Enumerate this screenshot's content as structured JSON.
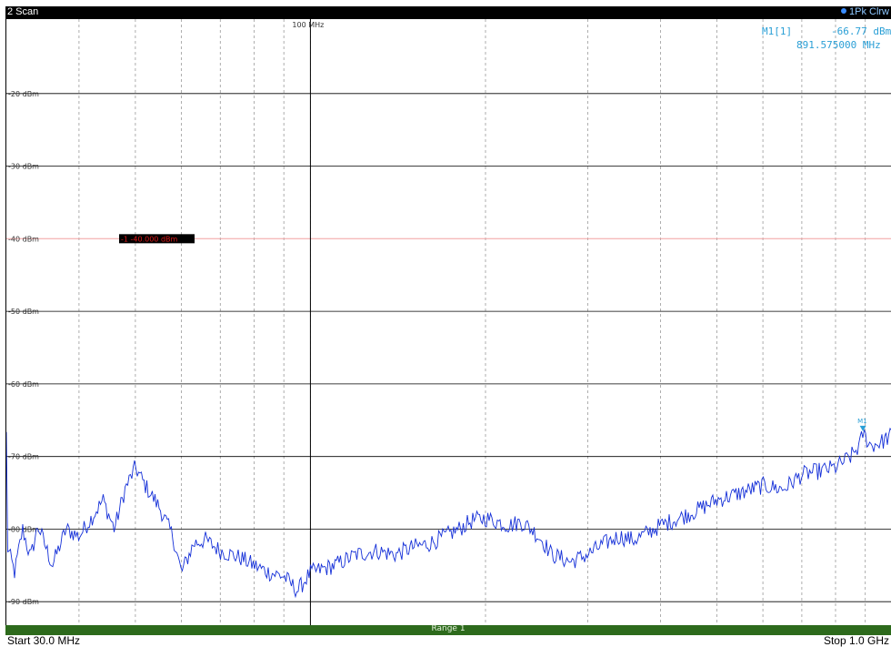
{
  "header": {
    "title": "2 Scan",
    "trace_label": "1Pk Clrw"
  },
  "marker_readout": {
    "name": "M1[1]",
    "level": "-66.77 dBm",
    "frequency": "891.575000 MHz"
  },
  "limit_line": {
    "label": "-1  -40.000 dBm",
    "value_dbm": -40
  },
  "vertical_marker_label": "100 MHz",
  "marker_flag": "M1",
  "footer": {
    "range_label": "Range 1",
    "start_label": "Start 30.0 MHz",
    "stop_label": "Stop 1.0 GHz"
  },
  "colors": {
    "trace": "#1530d8",
    "marker": "#2a9fd6",
    "limit_line": "#f2a0a0",
    "limit_label_bg": "#000000",
    "limit_label_text": "#e01818",
    "range_bar": "#2d6a1c"
  },
  "chart_data": {
    "type": "line",
    "x_scale": "log",
    "x_unit": "MHz",
    "xlim": [
      30,
      1000
    ],
    "y_unit": "dBm",
    "ylim": [
      -100,
      -10
    ],
    "y_tick_labels": [
      {
        "value": -20,
        "label": "-20 dBm"
      },
      {
        "value": -30,
        "label": "-30 dBm"
      },
      {
        "value": -40,
        "label": "-40 dBm"
      },
      {
        "value": -50,
        "label": "-50 dBm"
      },
      {
        "value": -60,
        "label": "-60 dBm"
      },
      {
        "value": -70,
        "label": "-70 dBm"
      },
      {
        "value": -80,
        "label": "-80 dBm"
      },
      {
        "value": -90,
        "label": "-90 dBm"
      }
    ],
    "x_gridlines_mhz": [
      40,
      50,
      60,
      70,
      80,
      90,
      100,
      200,
      300,
      400,
      500,
      600,
      700,
      800,
      900
    ],
    "marker": {
      "x": 891.575,
      "y": -66.77
    },
    "series": [
      {
        "x": [
          30,
          31,
          32,
          33,
          34,
          36,
          38,
          40,
          42,
          44,
          46,
          48,
          50,
          52,
          55,
          58,
          60,
          63,
          66,
          70,
          73,
          76,
          80,
          85,
          90,
          95,
          100,
          105,
          110,
          120,
          130,
          140,
          150,
          160,
          170,
          180,
          190,
          200,
          210,
          220,
          230,
          240,
          250,
          260,
          270,
          280,
          290,
          300,
          320,
          340,
          360,
          380,
          400,
          430,
          460,
          500,
          550,
          600,
          650,
          700,
          750,
          800,
          850,
          880,
          891.575,
          920,
          960,
          1000
        ],
        "y": [
          -82,
          -86,
          -80,
          -84,
          -79.5,
          -85,
          -80,
          -81,
          -78.5,
          -76,
          -80,
          -74.5,
          -71.5,
          -74,
          -77,
          -81,
          -86,
          -82,
          -81.5,
          -83,
          -83.5,
          -84,
          -85,
          -86,
          -86.5,
          -88.5,
          -86,
          -85.5,
          -85,
          -83.5,
          -83,
          -83.5,
          -82.5,
          -82,
          -81,
          -80,
          -78.8,
          -78.5,
          -79,
          -79.5,
          -79,
          -80,
          -81.5,
          -83.5,
          -84,
          -84.5,
          -84,
          -83.5,
          -82,
          -81,
          -81.5,
          -80.5,
          -79.5,
          -78.5,
          -77.5,
          -76,
          -75,
          -74,
          -74.5,
          -72.5,
          -72,
          -71.5,
          -70,
          -68.5,
          -66.77,
          -68.5,
          -68,
          -67
        ]
      }
    ]
  }
}
